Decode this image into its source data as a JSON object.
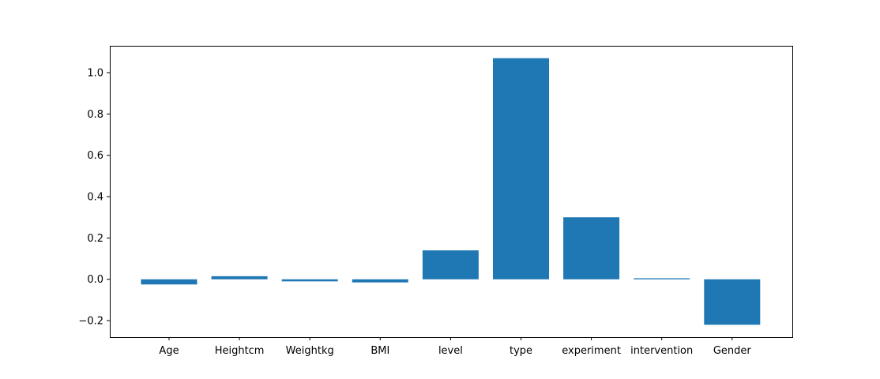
{
  "chart_data": {
    "type": "bar",
    "categories": [
      "Age",
      "Heightcm",
      "Weightkg",
      "BMI",
      "level",
      "type",
      "experiment",
      "intervention",
      "Gender"
    ],
    "values": [
      -0.025,
      0.015,
      -0.01,
      -0.015,
      0.14,
      1.07,
      0.3,
      0.005,
      -0.22
    ],
    "ylim": [
      -0.28,
      1.13
    ],
    "yticks": [
      -0.2,
      0.0,
      0.2,
      0.4,
      0.6,
      0.8,
      1.0
    ],
    "ytick_labels": [
      "−0.2",
      "0.0",
      "0.2",
      "0.4",
      "0.6",
      "0.8",
      "1.0"
    ],
    "bar_color": "#1f77b4",
    "grid": false,
    "legend": "none"
  }
}
